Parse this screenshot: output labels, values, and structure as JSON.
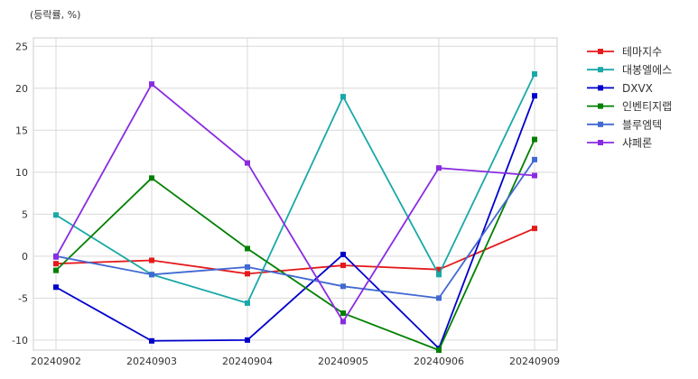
{
  "chart_data": {
    "type": "line",
    "unit_label": "(등락률, %)",
    "x": [
      "20240902",
      "20240903",
      "20240904",
      "20240905",
      "20240906",
      "20240909"
    ],
    "y_ticks": [
      -10,
      -5,
      0,
      5,
      10,
      15,
      20,
      25
    ],
    "ylim": [
      -11.2,
      26.0
    ],
    "grid": true,
    "legend_position": "right",
    "series": [
      {
        "name": "테마지수",
        "color": "#e41a1c",
        "values": [
          -0.9,
          -0.5,
          -2.1,
          -1.1,
          -1.6,
          3.3
        ]
      },
      {
        "name": "대봉엘에스",
        "color": "#1aa8a8",
        "values": [
          4.9,
          -2.2,
          -5.6,
          19.0,
          -2.2,
          21.7
        ]
      },
      {
        "name": "DXVX",
        "color": "#0000cc",
        "values": [
          -3.7,
          -10.1,
          -10.0,
          0.2,
          -11.0,
          19.1
        ]
      },
      {
        "name": "인벤티지랩",
        "color": "#008000",
        "values": [
          -1.7,
          9.3,
          0.9,
          -6.8,
          -11.2,
          13.9
        ]
      },
      {
        "name": "블루엠텍",
        "color": "#4169d2",
        "values": [
          0.0,
          -2.2,
          -1.3,
          -3.6,
          -5.0,
          11.5
        ]
      },
      {
        "name": "샤페론",
        "color": "#8a2be2",
        "values": [
          -0.1,
          20.5,
          11.1,
          -7.8,
          10.5,
          9.6
        ]
      }
    ]
  }
}
